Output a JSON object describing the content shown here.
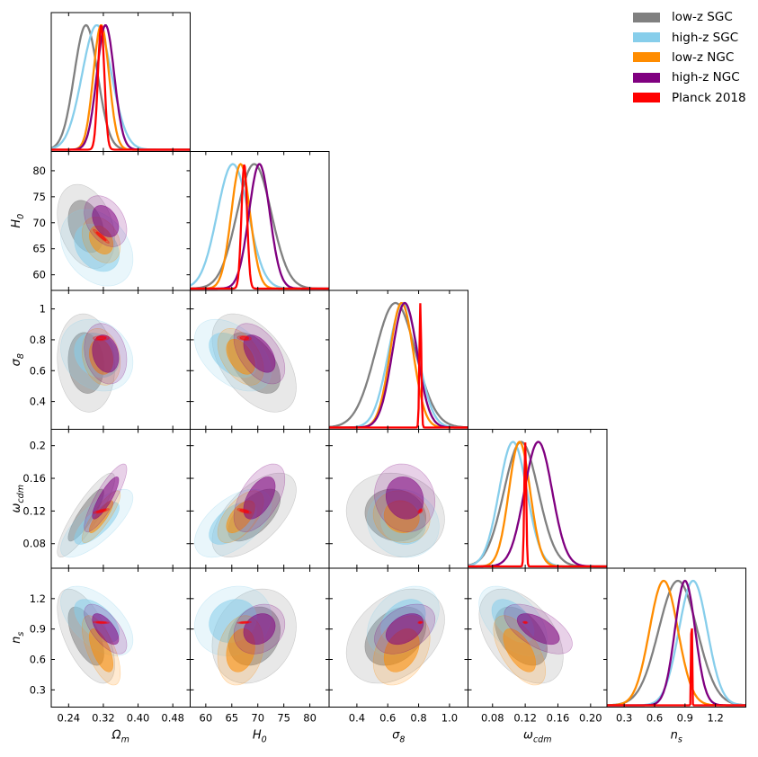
{
  "chart_data": {
    "type": "corner",
    "parameters": [
      {
        "name": "Omega_m",
        "label": "Ω",
        "sub": "m",
        "range": [
          0.2,
          0.52
        ],
        "ticks": [
          0.24,
          0.32,
          0.4,
          0.48
        ],
        "tick_labels": [
          "0.24",
          "0.32",
          "0.40",
          "0.48"
        ]
      },
      {
        "name": "H0",
        "label": "H",
        "sub": "0",
        "range": [
          57,
          83.7
        ],
        "ticks": [
          60,
          65,
          70,
          75,
          80
        ],
        "tick_labels": [
          "60",
          "65",
          "70",
          "75",
          "80"
        ]
      },
      {
        "name": "sigma8",
        "label": "σ",
        "sub": "8",
        "range": [
          0.22,
          1.12
        ],
        "ticks": [
          0.4,
          0.6,
          0.8,
          1.0
        ],
        "tick_labels": [
          "0.4",
          "0.6",
          "0.8",
          "1.0"
        ]
      },
      {
        "name": "omega_cdm",
        "label": "ω",
        "sub": "cdm",
        "range": [
          0.05,
          0.22
        ],
        "ticks": [
          0.08,
          0.12,
          0.16,
          0.2
        ],
        "tick_labels": [
          "0.08",
          "0.12",
          "0.16",
          "0.20"
        ]
      },
      {
        "name": "n_s",
        "label": "n",
        "sub": "s",
        "range": [
          0.13,
          1.5
        ],
        "ticks": [
          0.3,
          0.6,
          0.9,
          1.2
        ],
        "tick_labels": [
          "0.3",
          "0.6",
          "0.9",
          "1.2"
        ]
      }
    ],
    "y_tick_labels": {
      "H0": {
        "ticks": [
          60,
          65,
          70,
          75,
          80
        ],
        "labels": [
          "60",
          "65",
          "70",
          "75",
          "80"
        ]
      },
      "sigma8": {
        "ticks": [
          0.4,
          0.6,
          0.8,
          1.0
        ],
        "labels": [
          "0.4",
          "0.6",
          "0.8",
          "1"
        ]
      },
      "omega_cdm": {
        "ticks": [
          0.08,
          0.12,
          0.16,
          0.2
        ],
        "labels": [
          "0.08",
          "0.12",
          "0.16",
          "0.2"
        ]
      },
      "n_s": {
        "ticks": [
          0.3,
          0.6,
          0.9,
          1.2
        ],
        "labels": [
          "0.3",
          "0.6",
          "0.9",
          "1.2"
        ]
      }
    },
    "series": [
      {
        "name": "low-z SGC",
        "color": "#808080",
        "mean": [
          0.28,
          69.3,
          0.65,
          0.115,
          0.83
        ],
        "sigma": [
          0.027,
          3.3,
          0.13,
          0.021,
          0.19
        ],
        "corr": [
          [
            1,
            -0.3,
            -0.1,
            0.87,
            -0.6
          ],
          [
            -0.3,
            1,
            -0.5,
            0.6,
            0.2
          ],
          [
            -0.1,
            -0.5,
            1,
            -0.1,
            0.35
          ],
          [
            0.87,
            0.6,
            -0.1,
            1,
            -0.45
          ],
          [
            -0.6,
            0.2,
            0.35,
            -0.45,
            1
          ]
        ]
      },
      {
        "name": "high-z SGC",
        "color": "#87ceeb",
        "mean": [
          0.305,
          65.2,
          0.7,
          0.105,
          0.98
        ],
        "sigma": [
          0.034,
          3.0,
          0.095,
          0.017,
          0.14
        ],
        "corr": [
          [
            1,
            -0.3,
            -0.2,
            0.75,
            -0.55
          ],
          [
            -0.3,
            1,
            -0.45,
            0.55,
            0.15
          ],
          [
            -0.2,
            -0.45,
            1,
            -0.1,
            0.35
          ],
          [
            0.75,
            0.55,
            -0.1,
            1,
            -0.5
          ],
          [
            -0.55,
            0.15,
            0.35,
            -0.5,
            1
          ]
        ]
      },
      {
        "name": "low-z NGC",
        "color": "#ff8c00",
        "mean": [
          0.315,
          66.7,
          0.69,
          0.113,
          0.69
        ],
        "sigma": [
          0.018,
          1.8,
          0.075,
          0.013,
          0.14
        ],
        "corr": [
          [
            1,
            -0.3,
            -0.2,
            0.85,
            -0.65
          ],
          [
            -0.3,
            1,
            -0.45,
            0.6,
            0.2
          ],
          [
            -0.2,
            -0.45,
            1,
            -0.1,
            0.35
          ],
          [
            0.85,
            0.6,
            -0.1,
            1,
            -0.6
          ],
          [
            -0.65,
            0.2,
            0.35,
            -0.6,
            1
          ]
        ]
      },
      {
        "name": "high-z NGC",
        "color": "#800080",
        "mean": [
          0.325,
          70.3,
          0.71,
          0.136,
          0.9
        ],
        "sigma": [
          0.02,
          2.0,
          0.08,
          0.017,
          0.1
        ],
        "corr": [
          [
            1,
            -0.35,
            -0.2,
            0.85,
            -0.65
          ],
          [
            -0.35,
            1,
            -0.5,
            0.55,
            0.2
          ],
          [
            -0.2,
            -0.5,
            1,
            -0.1,
            0.4
          ],
          [
            0.85,
            0.55,
            -0.1,
            1,
            -0.6
          ],
          [
            -0.65,
            0.2,
            0.4,
            -0.6,
            1
          ]
        ]
      },
      {
        "name": "Planck 2018",
        "color": "#ff0000",
        "mean": [
          0.315,
          67.4,
          0.811,
          0.12,
          0.965
        ],
        "sigma": [
          0.0074,
          0.54,
          0.006,
          0.0012,
          0.0042
        ],
        "corr": [
          [
            1,
            -0.95,
            0.1,
            0.8,
            -0.3
          ],
          [
            -0.95,
            1,
            -0.2,
            -0.7,
            0.4
          ],
          [
            0.1,
            -0.2,
            1,
            0.5,
            0.2
          ],
          [
            0.8,
            -0.7,
            0.5,
            1,
            -0.2
          ],
          [
            -0.3,
            0.4,
            0.2,
            -0.2,
            1
          ]
        ]
      }
    ],
    "legend": {
      "position": "top-right",
      "entries": [
        "low-z SGC",
        "high-z SGC",
        "low-z NGC",
        "high-z NGC",
        "Planck 2018"
      ]
    },
    "contour_levels": [
      "68%",
      "95%"
    ]
  }
}
